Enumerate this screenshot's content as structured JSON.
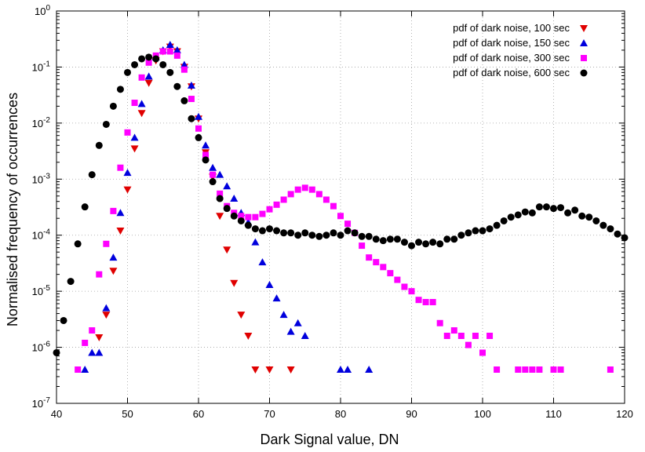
{
  "chart_data": {
    "type": "scatter",
    "title": "",
    "xlabel": "Dark Signal value, DN",
    "ylabel": "Normalised frequency of occurrences",
    "xlim": [
      40,
      120
    ],
    "ylim": [
      1e-07,
      1
    ],
    "yscale": "log",
    "grid": true,
    "legend_position": "top-right",
    "x_ticks": [
      40,
      50,
      60,
      70,
      80,
      90,
      100,
      110,
      120
    ],
    "y_ticks": [
      {
        "value": 1e-07,
        "label_base": "10",
        "label_exp": "-7"
      },
      {
        "value": 1e-06,
        "label_base": "10",
        "label_exp": "-6"
      },
      {
        "value": 1e-05,
        "label_base": "10",
        "label_exp": "-5"
      },
      {
        "value": 0.0001,
        "label_base": "10",
        "label_exp": "-4"
      },
      {
        "value": 0.001,
        "label_base": "10",
        "label_exp": "-3"
      },
      {
        "value": 0.01,
        "label_base": "10",
        "label_exp": "-2"
      },
      {
        "value": 0.1,
        "label_base": "10",
        "label_exp": "-1"
      },
      {
        "value": 1,
        "label_base": "10",
        "label_exp": "0"
      }
    ],
    "series": [
      {
        "name": "pdf of dark noise, 100 sec",
        "marker": "triangle-down",
        "color": "#e00000",
        "points": [
          [
            46,
            1.5e-06
          ],
          [
            47,
            3.8e-06
          ],
          [
            48,
            2.3e-05
          ],
          [
            49,
            0.00012
          ],
          [
            50,
            0.00065
          ],
          [
            51,
            0.0035
          ],
          [
            52,
            0.015
          ],
          [
            53,
            0.052
          ],
          [
            54,
            0.13
          ],
          [
            55,
            0.19
          ],
          [
            56,
            0.23
          ],
          [
            57,
            0.19
          ],
          [
            58,
            0.1
          ],
          [
            59,
            0.045
          ],
          [
            60,
            0.012
          ],
          [
            61,
            0.003
          ],
          [
            62,
            0.0011
          ],
          [
            63,
            0.00022
          ],
          [
            64,
            5.5e-05
          ],
          [
            65,
            1.4e-05
          ],
          [
            66,
            3.8e-06
          ],
          [
            67,
            1.6e-06
          ],
          [
            68,
            4e-07
          ],
          [
            70,
            4e-07
          ],
          [
            73,
            4e-07
          ]
        ]
      },
      {
        "name": "pdf of dark noise, 150 sec",
        "marker": "triangle-up",
        "color": "#0000dd",
        "points": [
          [
            44,
            4e-07
          ],
          [
            45,
            8e-07
          ],
          [
            46,
            8e-07
          ],
          [
            47,
            5e-06
          ],
          [
            48,
            4e-05
          ],
          [
            49,
            0.00025
          ],
          [
            50,
            0.0013
          ],
          [
            51,
            0.0055
          ],
          [
            52,
            0.022
          ],
          [
            53,
            0.068
          ],
          [
            54,
            0.15
          ],
          [
            55,
            0.2
          ],
          [
            56,
            0.25
          ],
          [
            57,
            0.2
          ],
          [
            58,
            0.11
          ],
          [
            59,
            0.047
          ],
          [
            60,
            0.013
          ],
          [
            61,
            0.004
          ],
          [
            62,
            0.0016
          ],
          [
            63,
            0.0012
          ],
          [
            64,
            0.00075
          ],
          [
            65,
            0.00045
          ],
          [
            66,
            0.00025
          ],
          [
            67,
            0.00017
          ],
          [
            68,
            7.5e-05
          ],
          [
            69,
            3.3e-05
          ],
          [
            70,
            1.3e-05
          ],
          [
            71,
            7.5e-06
          ],
          [
            72,
            3.8e-06
          ],
          [
            73,
            1.9e-06
          ],
          [
            74,
            2.7e-06
          ],
          [
            75,
            1.6e-06
          ],
          [
            80,
            4e-07
          ],
          [
            81,
            4e-07
          ],
          [
            84,
            4e-07
          ]
        ]
      },
      {
        "name": "pdf of dark noise, 300 sec",
        "marker": "square",
        "color": "#ff00ff",
        "points": [
          [
            43,
            4e-07
          ],
          [
            44,
            1.2e-06
          ],
          [
            45,
            2e-06
          ],
          [
            46,
            2e-05
          ],
          [
            47,
            7e-05
          ],
          [
            48,
            0.00027
          ],
          [
            49,
            0.0016
          ],
          [
            50,
            0.0068
          ],
          [
            51,
            0.023
          ],
          [
            52,
            0.065
          ],
          [
            53,
            0.12
          ],
          [
            54,
            0.16
          ],
          [
            55,
            0.19
          ],
          [
            56,
            0.19
          ],
          [
            57,
            0.16
          ],
          [
            58,
            0.09
          ],
          [
            59,
            0.027
          ],
          [
            60,
            0.008
          ],
          [
            61,
            0.0027
          ],
          [
            62,
            0.0012
          ],
          [
            63,
            0.00055
          ],
          [
            64,
            0.00033
          ],
          [
            65,
            0.00025
          ],
          [
            66,
            0.00022
          ],
          [
            67,
            0.00021
          ],
          [
            68,
            0.00021
          ],
          [
            69,
            0.00024
          ],
          [
            70,
            0.00029
          ],
          [
            71,
            0.00035
          ],
          [
            72,
            0.00043
          ],
          [
            73,
            0.00054
          ],
          [
            74,
            0.00065
          ],
          [
            75,
            0.0007
          ],
          [
            76,
            0.00065
          ],
          [
            77,
            0.00054
          ],
          [
            78,
            0.00043
          ],
          [
            79,
            0.00033
          ],
          [
            80,
            0.00022
          ],
          [
            81,
            0.00016
          ],
          [
            82,
            0.00011
          ],
          [
            83,
            6.5e-05
          ],
          [
            84,
            4e-05
          ],
          [
            85,
            3.3e-05
          ],
          [
            86,
            2.7e-05
          ],
          [
            87,
            2.1e-05
          ],
          [
            88,
            1.6e-05
          ],
          [
            89,
            1.2e-05
          ],
          [
            90,
            1e-05
          ],
          [
            91,
            7e-06
          ],
          [
            92,
            6.4e-06
          ],
          [
            93,
            6.4e-06
          ],
          [
            94,
            2.7e-06
          ],
          [
            95,
            1.6e-06
          ],
          [
            96,
            2e-06
          ],
          [
            97,
            1.6e-06
          ],
          [
            98,
            1.1e-06
          ],
          [
            99,
            1.6e-06
          ],
          [
            100,
            8e-07
          ],
          [
            101,
            1.6e-06
          ],
          [
            102,
            4e-07
          ],
          [
            105,
            4e-07
          ],
          [
            106,
            4e-07
          ],
          [
            107,
            4e-07
          ],
          [
            108,
            4e-07
          ],
          [
            110,
            4e-07
          ],
          [
            111,
            4e-07
          ],
          [
            118,
            4e-07
          ]
        ]
      },
      {
        "name": "pdf of dark noise, 600 sec",
        "marker": "circle",
        "color": "#000000",
        "points": [
          [
            40,
            8e-07
          ],
          [
            41,
            3e-06
          ],
          [
            42,
            1.5e-05
          ],
          [
            43,
            7e-05
          ],
          [
            44,
            0.00032
          ],
          [
            45,
            0.0012
          ],
          [
            46,
            0.004
          ],
          [
            47,
            0.0095
          ],
          [
            48,
            0.02
          ],
          [
            49,
            0.04
          ],
          [
            50,
            0.08
          ],
          [
            51,
            0.11
          ],
          [
            52,
            0.14
          ],
          [
            53,
            0.15
          ],
          [
            54,
            0.14
          ],
          [
            55,
            0.11
          ],
          [
            56,
            0.08
          ],
          [
            57,
            0.045
          ],
          [
            58,
            0.025
          ],
          [
            59,
            0.012
          ],
          [
            60,
            0.0055
          ],
          [
            61,
            0.0022
          ],
          [
            62,
            0.0009
          ],
          [
            63,
            0.00045
          ],
          [
            64,
            0.0003
          ],
          [
            65,
            0.00022
          ],
          [
            66,
            0.00018
          ],
          [
            67,
            0.00015
          ],
          [
            68,
            0.00013
          ],
          [
            69,
            0.00012
          ],
          [
            70,
            0.00013
          ],
          [
            71,
            0.00012
          ],
          [
            72,
            0.00011
          ],
          [
            73,
            0.00011
          ],
          [
            74,
            0.0001
          ],
          [
            75,
            0.00011
          ],
          [
            76,
            0.0001
          ],
          [
            77,
            9.5e-05
          ],
          [
            78,
            0.0001
          ],
          [
            79,
            0.00011
          ],
          [
            80,
            0.0001
          ],
          [
            81,
            0.00012
          ],
          [
            82,
            0.00011
          ],
          [
            83,
            9.5e-05
          ],
          [
            84,
            9.5e-05
          ],
          [
            85,
            8.5e-05
          ],
          [
            86,
            8e-05
          ],
          [
            87,
            8.5e-05
          ],
          [
            88,
            8.5e-05
          ],
          [
            89,
            7.5e-05
          ],
          [
            90,
            6.5e-05
          ],
          [
            91,
            7.5e-05
          ],
          [
            92,
            7e-05
          ],
          [
            93,
            7.5e-05
          ],
          [
            94,
            7e-05
          ],
          [
            95,
            8.5e-05
          ],
          [
            96,
            8.5e-05
          ],
          [
            97,
            0.0001
          ],
          [
            98,
            0.00011
          ],
          [
            99,
            0.00012
          ],
          [
            100,
            0.00012
          ],
          [
            101,
            0.00013
          ],
          [
            102,
            0.00015
          ],
          [
            103,
            0.00018
          ],
          [
            104,
            0.00021
          ],
          [
            105,
            0.00023
          ],
          [
            106,
            0.00026
          ],
          [
            107,
            0.00025
          ],
          [
            108,
            0.00032
          ],
          [
            109,
            0.00032
          ],
          [
            110,
            0.0003
          ],
          [
            111,
            0.00031
          ],
          [
            112,
            0.00025
          ],
          [
            113,
            0.00028
          ],
          [
            114,
            0.00022
          ],
          [
            115,
            0.00021
          ],
          [
            116,
            0.00018
          ],
          [
            117,
            0.00015
          ],
          [
            118,
            0.00013
          ],
          [
            119,
            0.000105
          ],
          [
            120,
            9e-05
          ]
        ]
      }
    ]
  }
}
